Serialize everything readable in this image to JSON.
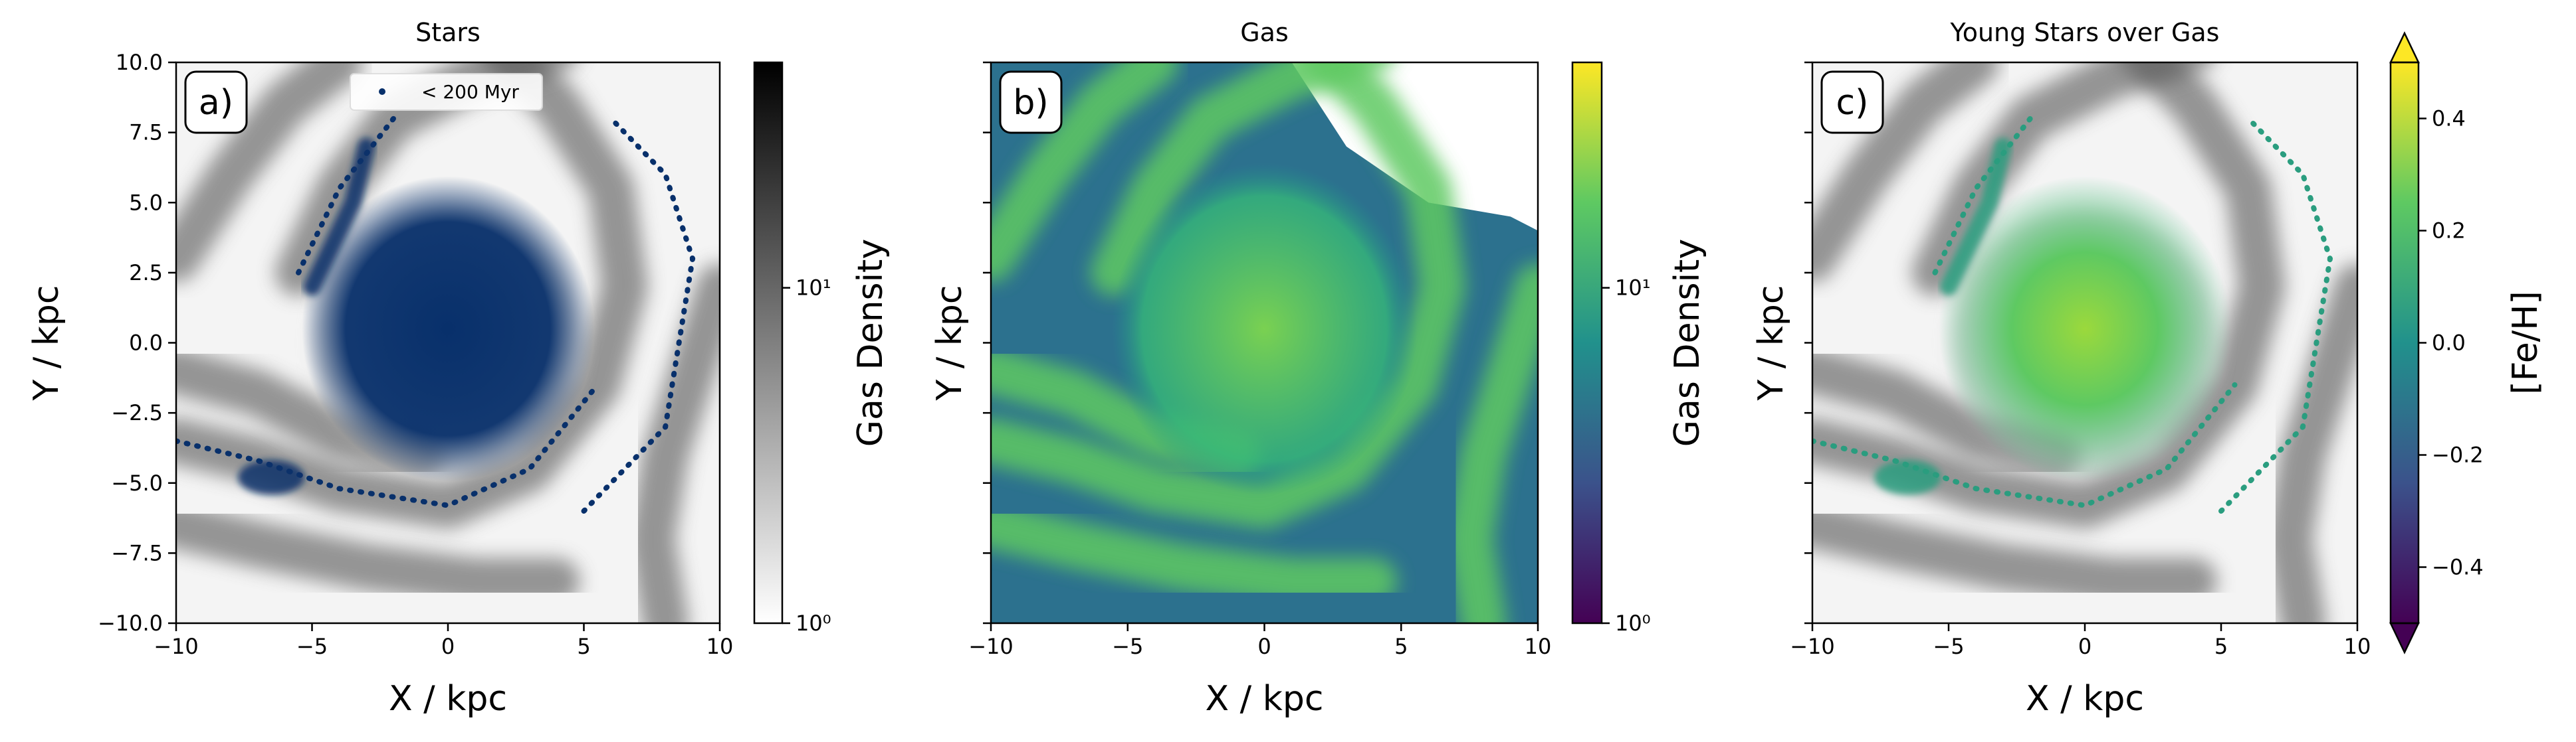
{
  "chart_data": [
    {
      "type": "scatter",
      "title": "Stars",
      "panel_label": "a)",
      "xlabel": "X / kpc",
      "ylabel": "Y / kpc",
      "xlim": [
        -10,
        10
      ],
      "ylim": [
        -10,
        10
      ],
      "xticks": [
        {
          "value": -10,
          "label": "−10"
        },
        {
          "value": -5,
          "label": "−5"
        },
        0,
        5,
        10
      ],
      "yticks": [
        {
          "value": -10,
          "label": "−10.0"
        },
        {
          "value": -7.5,
          "label": "−7.5"
        },
        {
          "value": -5,
          "label": "−5.0"
        },
        {
          "value": -2.5,
          "label": "−2.5"
        },
        {
          "value": 0,
          "label": "0.0"
        },
        2.5,
        {
          "value": 5,
          "label": "5.0"
        },
        7.5,
        {
          "value": 10,
          "label": "10.0"
        }
      ],
      "show_ytick_labels": true,
      "legend": {
        "label": "< 200 Myr",
        "color": "#08306b"
      },
      "colorbar": {
        "label": "Gas Density",
        "scale": "log",
        "lim": [
          1,
          47
        ],
        "cmap": "gray",
        "ticks": [
          {
            "value": 1,
            "label": "10⁰"
          },
          {
            "value": 10,
            "label": "10¹"
          }
        ]
      }
    },
    {
      "type": "heatmap",
      "title": "Gas",
      "panel_label": "b)",
      "xlabel": "X / kpc",
      "ylabel": "Y / kpc",
      "xlim": [
        -10,
        10
      ],
      "ylim": [
        -10,
        10
      ],
      "xticks": [
        {
          "value": -10,
          "label": "−10"
        },
        {
          "value": -5,
          "label": "−5"
        },
        0,
        5,
        10
      ],
      "yticks": [
        -10,
        -7.5,
        -5,
        -2.5,
        0,
        2.5,
        5,
        7.5,
        10
      ],
      "show_ytick_labels": false,
      "colorbar": {
        "label": "Gas Density",
        "scale": "log",
        "lim": [
          1,
          47
        ],
        "cmap": "viridis",
        "ticks": [
          {
            "value": 1,
            "label": "10⁰"
          },
          {
            "value": 10,
            "label": "10¹"
          }
        ]
      }
    },
    {
      "type": "scatter",
      "title": "Young Stars over Gas",
      "panel_label": "c)",
      "xlabel": "X / kpc",
      "ylabel": "Y / kpc",
      "xlim": [
        -10,
        10
      ],
      "ylim": [
        -10,
        10
      ],
      "xticks": [
        {
          "value": -10,
          "label": "−10"
        },
        {
          "value": -5,
          "label": "−5"
        },
        0,
        5,
        10
      ],
      "yticks": [
        -10,
        -7.5,
        -5,
        -2.5,
        0,
        2.5,
        5,
        7.5,
        10
      ],
      "show_ytick_labels": false,
      "colorbar": {
        "label": "[Fe/H]",
        "scale": "linear",
        "lim": [
          -0.5,
          0.5
        ],
        "cmap": "viridis",
        "extend": "both",
        "ticks": [
          {
            "value": -0.4,
            "label": "−0.4"
          },
          {
            "value": -0.2,
            "label": "−0.2"
          },
          {
            "value": 0,
            "label": "0.0"
          },
          0.2,
          0.4
        ]
      }
    }
  ]
}
